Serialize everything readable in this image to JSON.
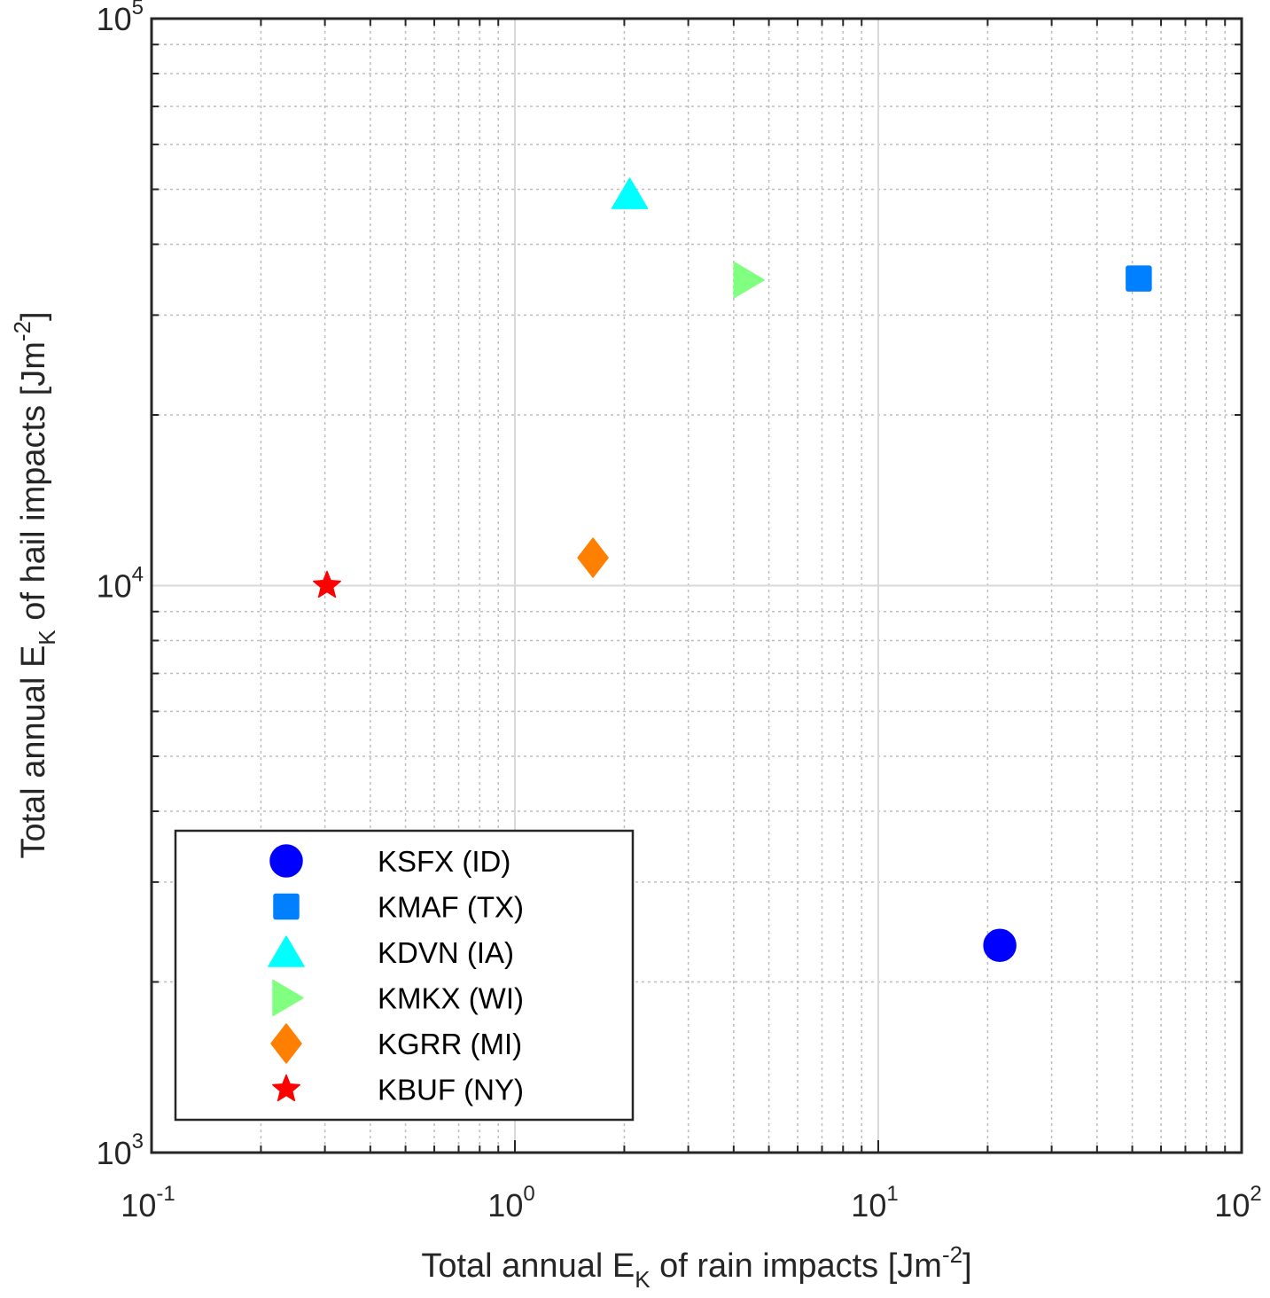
{
  "chart_data": {
    "type": "scatter",
    "title": "",
    "xlabel": {
      "prefix": "Total annual E",
      "sub": "K",
      "suffix": " of rain impacts [Jm",
      "sup": "-2",
      "end": "]"
    },
    "ylabel": {
      "prefix": "Total annual E",
      "sub": "K",
      "suffix": " of hail impacts [Jm",
      "sup": "-2",
      "end": "]"
    },
    "xscale": "log",
    "yscale": "log",
    "xlim": [
      0.1,
      100
    ],
    "ylim": [
      1000,
      100000
    ],
    "xticks": [
      {
        "value": 0.1,
        "base": "10",
        "exp": "-1"
      },
      {
        "value": 1,
        "base": "10",
        "exp": "0"
      },
      {
        "value": 10,
        "base": "10",
        "exp": "1"
      },
      {
        "value": 100,
        "base": "10",
        "exp": "2"
      }
    ],
    "yticks": [
      {
        "value": 1000,
        "base": "10",
        "exp": "3"
      },
      {
        "value": 10000,
        "base": "10",
        "exp": "4"
      },
      {
        "value": 100000,
        "base": "10",
        "exp": "5"
      }
    ],
    "grid": true,
    "minor_grid": true,
    "legend_position": "bottom-left",
    "series": [
      {
        "name": "KSFX (ID)",
        "marker": "circle",
        "color": "#0000ff",
        "x": 21.6,
        "y": 2320
      },
      {
        "name": "KMAF (TX)",
        "marker": "square",
        "color": "#0080ff",
        "x": 52.1,
        "y": 34800
      },
      {
        "name": "KDVN (IA)",
        "marker": "triangle-up",
        "color": "#00ffff",
        "x": 2.07,
        "y": 49000
      },
      {
        "name": "KMKX (WI)",
        "marker": "triangle-right",
        "color": "#80ff80",
        "x": 4.36,
        "y": 34600
      },
      {
        "name": "KGRR (MI)",
        "marker": "diamond",
        "color": "#ff8000",
        "x": 1.64,
        "y": 11200
      },
      {
        "name": "KBUF (NY)",
        "marker": "star",
        "color": "#ff0000",
        "x": 0.304,
        "y": 10000
      }
    ]
  }
}
